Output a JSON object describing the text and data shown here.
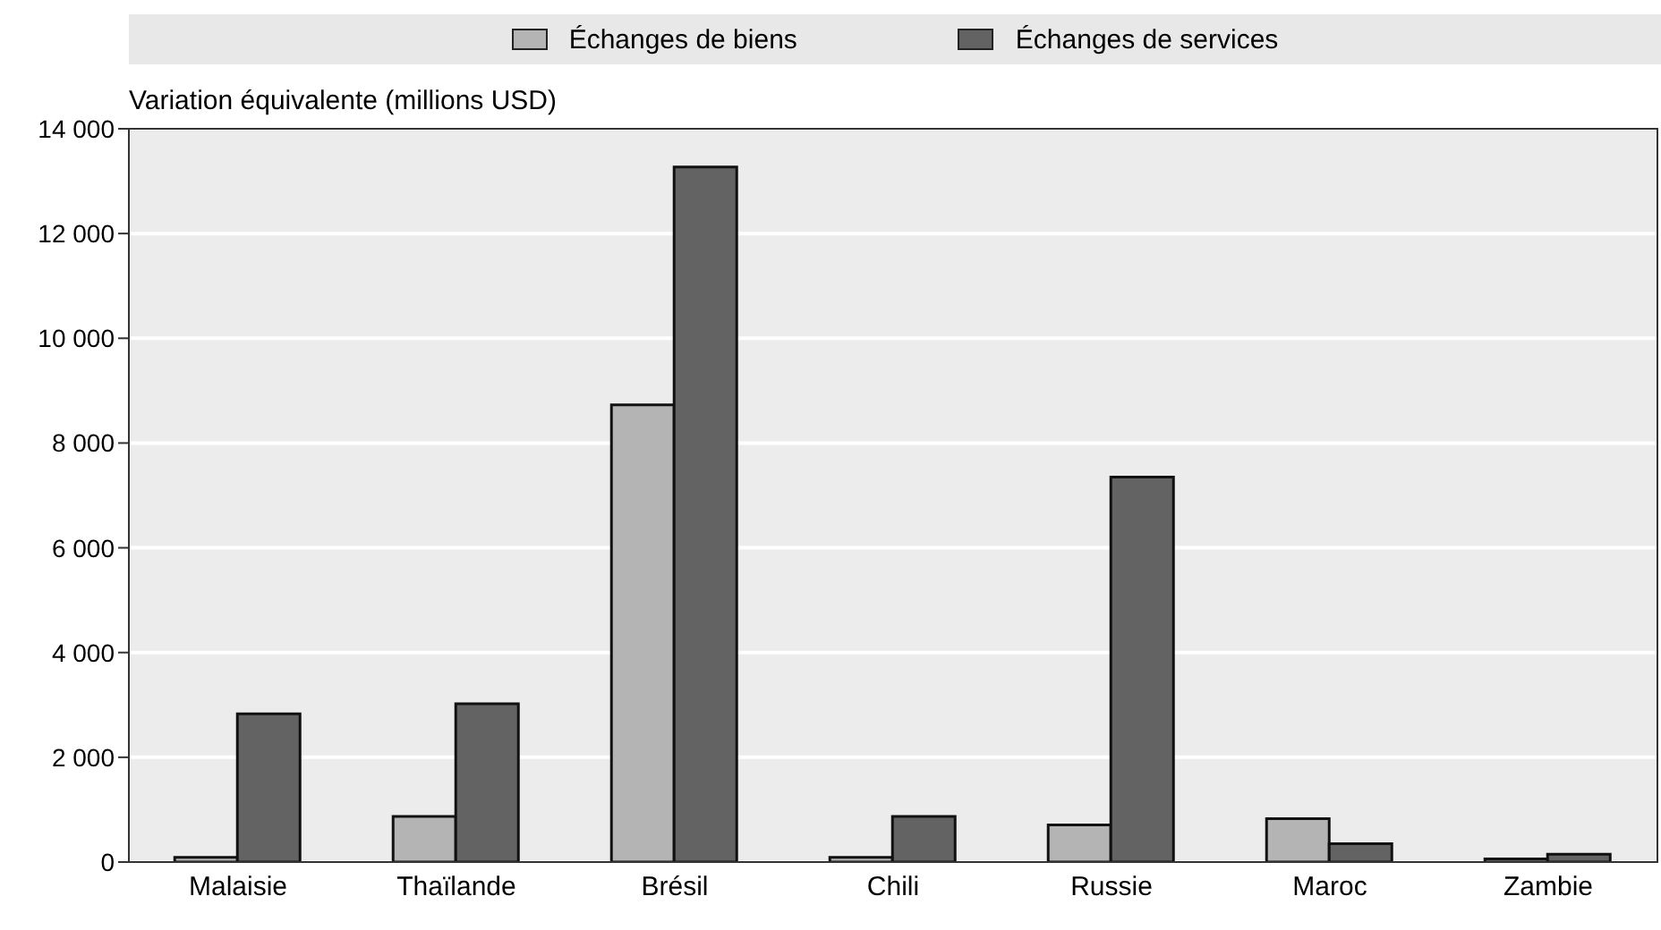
{
  "chart_data": {
    "type": "bar",
    "ylabel": "Variation équivalente (millions USD)",
    "categories": [
      "Malaisie",
      "Thaïlande",
      "Brésil",
      "Chili",
      "Russie",
      "Maroc",
      "Zambie"
    ],
    "series": [
      {
        "name": "Échanges de biens",
        "color": "#b4b4b4",
        "values": [
          90,
          870,
          8730,
          90,
          710,
          830,
          60
        ]
      },
      {
        "name": "Échanges de services",
        "color": "#636363",
        "values": [
          2830,
          3020,
          13270,
          870,
          7350,
          350,
          150
        ]
      }
    ],
    "ylim": [
      0,
      14000
    ],
    "yticks": [
      {
        "value": 0,
        "label": "0"
      },
      {
        "value": 2000,
        "label": "2 000"
      },
      {
        "value": 4000,
        "label": "4 000"
      },
      {
        "value": 6000,
        "label": "6 000"
      },
      {
        "value": 8000,
        "label": "8 000"
      },
      {
        "value": 10000,
        "label": "10 000"
      },
      {
        "value": 12000,
        "label": "12 000"
      },
      {
        "value": 14000,
        "label": "14 000"
      }
    ],
    "grid": "y",
    "legend": "top"
  }
}
